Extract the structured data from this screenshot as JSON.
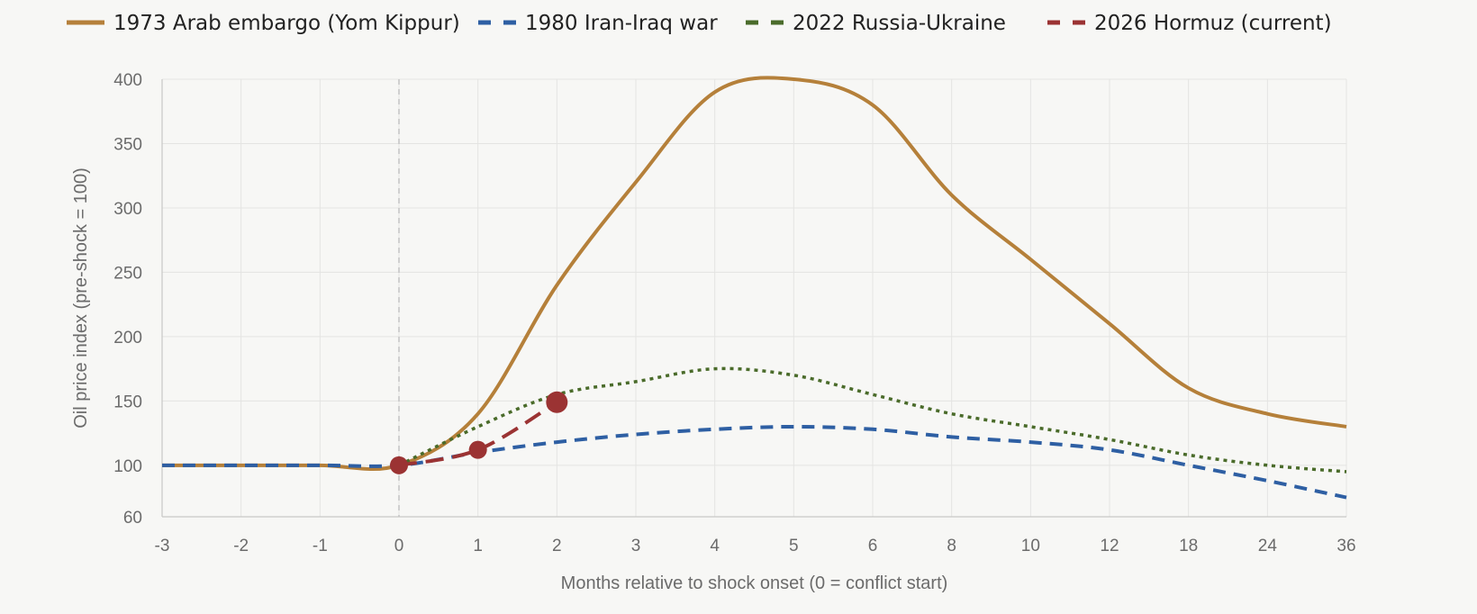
{
  "chart_data": {
    "type": "line",
    "xlabel": "Months relative to shock onset (0 = conflict start)",
    "ylabel": "Oil price index (pre-shock = 100)",
    "x": [
      "-3",
      "-2",
      "-1",
      "0",
      "1",
      "2",
      "3",
      "4",
      "5",
      "6",
      "8",
      "10",
      "12",
      "18",
      "24",
      "36"
    ],
    "ylim": [
      60,
      400
    ],
    "yticks": [
      60,
      100,
      150,
      200,
      250,
      300,
      350,
      400
    ],
    "grid": true,
    "legend_position": "top",
    "reference_line_x": "0",
    "series": [
      {
        "name": "1973 Arab embargo (Yom Kippur)",
        "color": "#b5803a",
        "dash": "solid",
        "values": [
          100,
          100,
          100,
          100,
          140,
          240,
          320,
          390,
          400,
          380,
          310,
          260,
          210,
          160,
          140,
          130
        ]
      },
      {
        "name": "1980 Iran-Iraq war",
        "color": "#2e5fa3",
        "dash": "dashed",
        "values": [
          100,
          100,
          100,
          100,
          110,
          118,
          124,
          128,
          130,
          128,
          122,
          118,
          112,
          100,
          88,
          75
        ]
      },
      {
        "name": "2022 Russia-Ukraine",
        "color": "#4a6b2a",
        "dash": "dotted",
        "values": [
          null,
          null,
          null,
          100,
          130,
          155,
          165,
          175,
          170,
          155,
          140,
          130,
          120,
          108,
          100,
          95
        ]
      },
      {
        "name": "2026 Hormuz (current)",
        "color": "#9b3333",
        "dash": "longdash",
        "markers": true,
        "values": [
          null,
          null,
          null,
          100,
          112,
          149,
          null,
          null,
          null,
          null,
          null,
          null,
          null,
          null,
          null,
          null
        ]
      }
    ]
  }
}
